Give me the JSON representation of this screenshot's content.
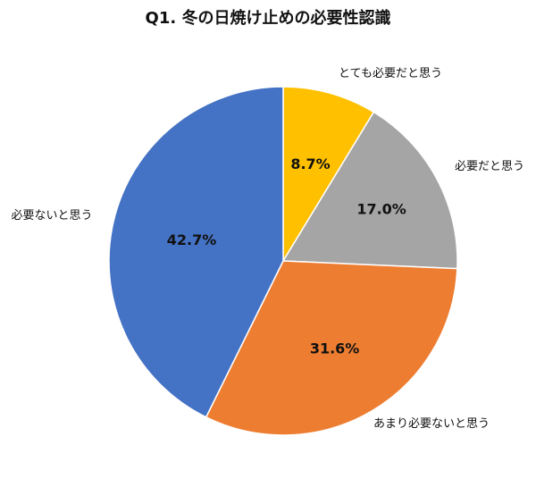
{
  "chart_data": {
    "type": "pie",
    "title": "Q1. 冬の日焼け止めの必要性認識",
    "slices": [
      {
        "label": "とても必要だと思う",
        "value": 8.7,
        "value_label": "8.7%",
        "color": "#FFC000"
      },
      {
        "label": "必要だと思う",
        "value": 17.0,
        "value_label": "17.0%",
        "color": "#A5A5A5"
      },
      {
        "label": "あまり必要ないと思う",
        "value": 31.6,
        "value_label": "31.6%",
        "color": "#ED7D31"
      },
      {
        "label": "必要ないと思う",
        "value": 42.7,
        "value_label": "42.7%",
        "color": "#4472C4"
      }
    ],
    "start": "12 o'clock",
    "direction": "clockwise",
    "legend": "none",
    "labels": "outside"
  }
}
